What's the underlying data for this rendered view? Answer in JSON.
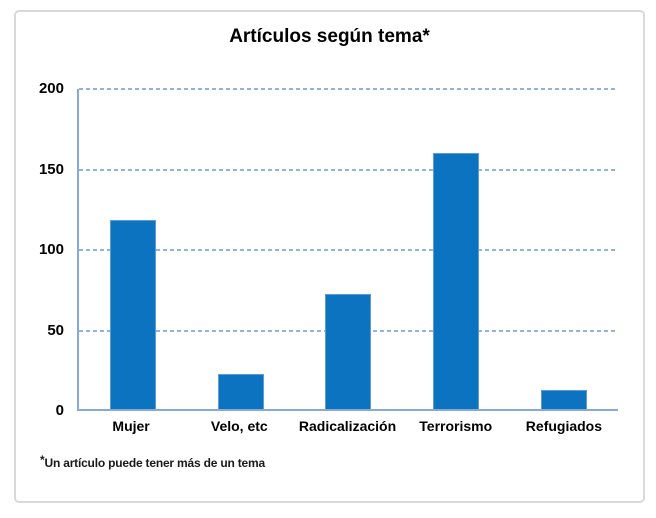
{
  "chart": {
    "title": "Artículos según tema*",
    "footnote_marker": "*",
    "footnote_text": "Un artículo puede tener más de un tema"
  },
  "chart_data": {
    "type": "bar",
    "title": "Artículos según tema*",
    "categories": [
      "Mujer",
      "Velo, etc",
      "Radicalización",
      "Terrorismo",
      "Refugiados"
    ],
    "values": [
      118,
      22,
      72,
      160,
      12
    ],
    "yticks": [
      0,
      50,
      100,
      150,
      200
    ],
    "ylim": [
      0,
      200
    ],
    "grid": "horizontal-dashed",
    "legend": "none",
    "footnote": "*Un artículo puede tener más de un tema",
    "bar_color": "#0b73bf",
    "bar_border_color": "#5f9bd3",
    "axis_color": "#87a9d7",
    "gridline_color": "#8db4e2",
    "frame_border_color": "#d9d9d9"
  }
}
